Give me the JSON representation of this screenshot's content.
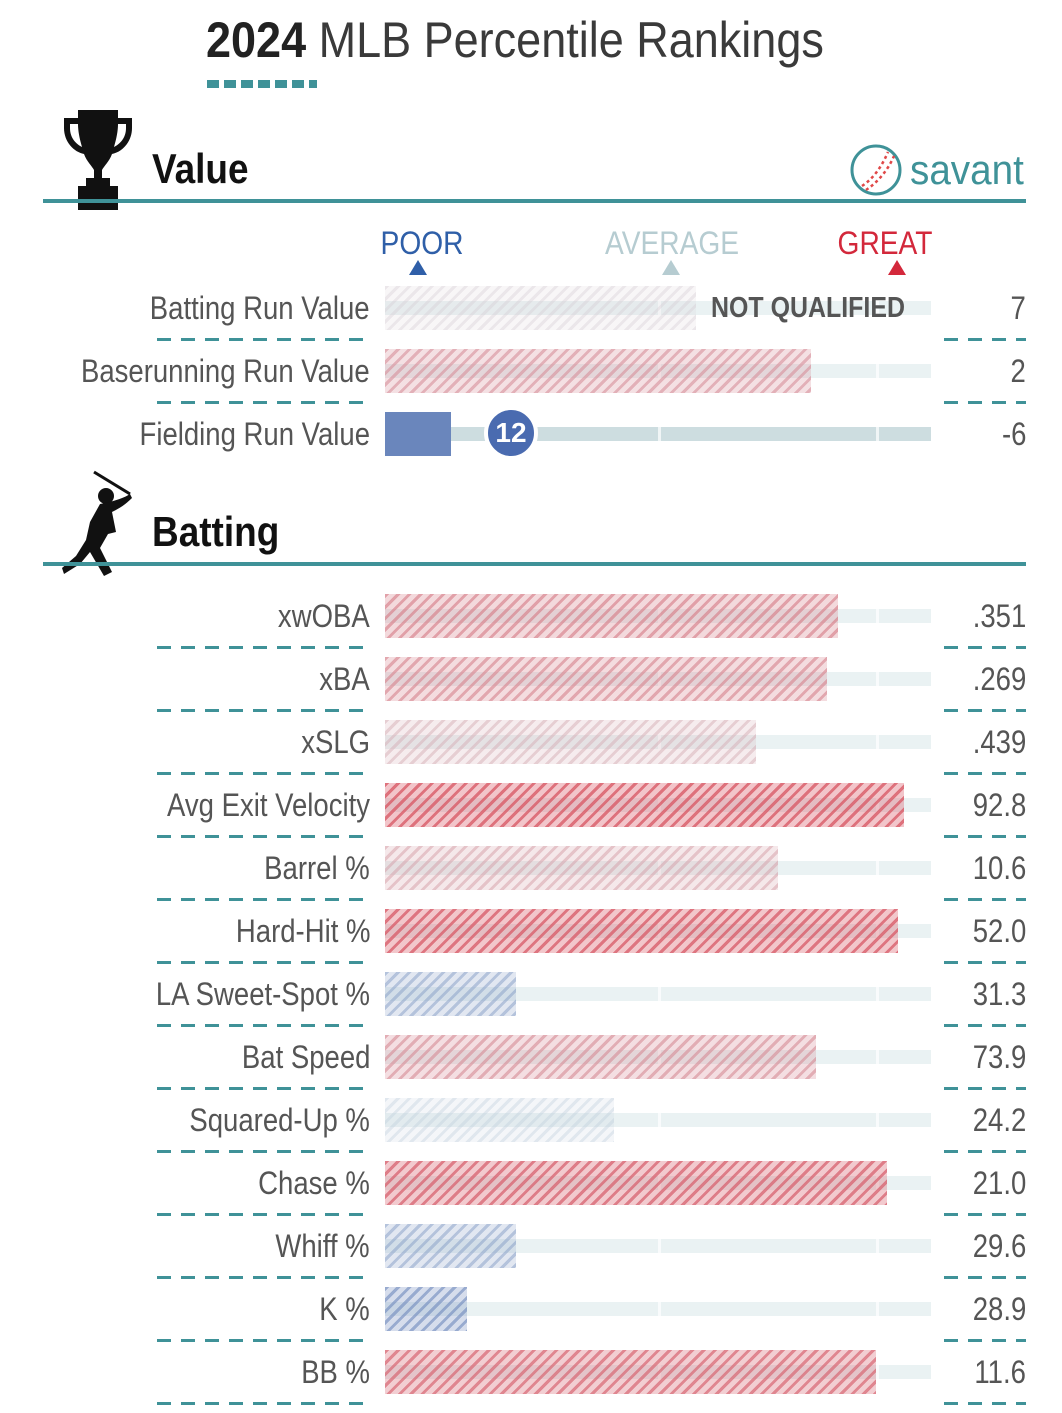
{
  "header": {
    "title_year": "2024",
    "title_rest": " MLB Percentile Rankings",
    "logo_text": "savant"
  },
  "scale": {
    "poor": "POOR",
    "average": "AVERAGE",
    "great": "GREAT"
  },
  "colors": {
    "teal": "#3f9298",
    "poor_blue": "#2f5fa8",
    "great_red": "#d3283b",
    "average_grey": "#b6ccd1"
  },
  "sections": [
    {
      "id": "value",
      "title": "Value",
      "icon": "trophy-icon"
    },
    {
      "id": "batting",
      "title": "Batting",
      "icon": "batter-icon"
    }
  ],
  "chart_data": [
    {
      "type": "bar",
      "section": "Value",
      "xlim": [
        0,
        100
      ],
      "categories": [
        "Batting Run Value",
        "Baserunning Run Value",
        "Fielding Run Value"
      ],
      "percentiles": [
        57,
        78,
        12
      ],
      "stat_values": [
        "7",
        "2",
        "-6"
      ],
      "annotations": [
        "NOT QUALIFIED",
        "",
        ""
      ],
      "marker_labels": [
        "",
        "",
        "12"
      ]
    },
    {
      "type": "bar",
      "section": "Batting",
      "xlim": [
        0,
        100
      ],
      "categories": [
        "xwOBA",
        "xBA",
        "xSLG",
        "Avg Exit Velocity",
        "Barrel %",
        "Hard-Hit %",
        "LA Sweet-Spot %",
        "Bat Speed",
        "Squared-Up %",
        "Chase %",
        "Whiff %",
        "K %",
        "BB %"
      ],
      "percentiles": [
        83,
        81,
        68,
        95,
        72,
        94,
        24,
        79,
        42,
        92,
        24,
        15,
        90
      ],
      "stat_values": [
        ".351",
        ".269",
        ".439",
        "92.8",
        "10.6",
        "52.0",
        "31.3",
        "73.9",
        "24.2",
        "21.0",
        "29.6",
        "28.9",
        "11.6"
      ]
    }
  ]
}
